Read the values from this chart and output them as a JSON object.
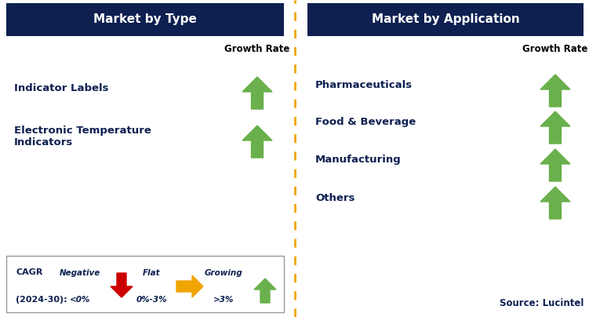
{
  "title_left": "Market by Type",
  "title_right": "Market by Application",
  "header_bg_color": "#0d2050",
  "header_text_color": "#ffffff",
  "left_items": [
    "Indicator Labels",
    "Electronic Temperature\nIndicators"
  ],
  "right_items": [
    "Pharmaceuticals",
    "Food & Beverage",
    "Manufacturing",
    "Others"
  ],
  "item_text_color": "#0d2050",
  "growth_rate_label": "Growth Rate",
  "growth_rate_color": "#000000",
  "arrow_up_color": "#6ab04c",
  "arrow_flat_color": "#f0a500",
  "arrow_down_color": "#cc0000",
  "divider_color": "#f0a500",
  "source_text": "Source: Lucintel",
  "bg_color": "#ffffff"
}
